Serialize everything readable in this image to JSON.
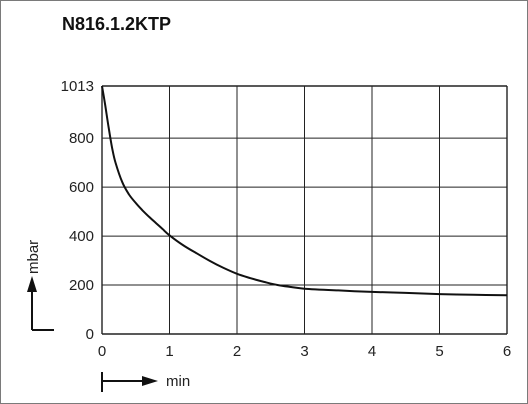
{
  "chart_data": {
    "type": "line",
    "title": "N816.1.2KTP",
    "xlabel": "min",
    "ylabel": "mbar",
    "xlim": [
      0,
      6
    ],
    "ylim": [
      0,
      1013
    ],
    "x_ticks": [
      "0",
      "1",
      "2",
      "3",
      "4",
      "5",
      "6"
    ],
    "y_ticks": [
      {
        "value": 0,
        "label": "0"
      },
      {
        "value": 200,
        "label": "200"
      },
      {
        "value": 400,
        "label": "400"
      },
      {
        "value": 600,
        "label": "600"
      },
      {
        "value": 800,
        "label": "800"
      },
      {
        "value": 1013,
        "label": "1013"
      }
    ],
    "grid": true,
    "series": [
      {
        "x": [
          0,
          0.05,
          0.1,
          0.15,
          0.2,
          0.3,
          0.4,
          0.5,
          0.6,
          0.7,
          0.8,
          0.9,
          1.0,
          1.2,
          1.4,
          1.6,
          1.8,
          2.0,
          2.2,
          2.4,
          2.6,
          2.8,
          3.0,
          3.5,
          4.0,
          4.5,
          5.0,
          5.5,
          6.0
        ],
        "y": [
          1013,
          930,
          840,
          760,
          700,
          620,
          570,
          535,
          505,
          478,
          453,
          428,
          403,
          363,
          330,
          298,
          270,
          246,
          228,
          213,
          200,
          192,
          185,
          178,
          172,
          168,
          163,
          160,
          158
        ]
      }
    ],
    "colors": {
      "line": "#111111",
      "grid": "#222222",
      "frame": "#7a7a7a"
    }
  }
}
